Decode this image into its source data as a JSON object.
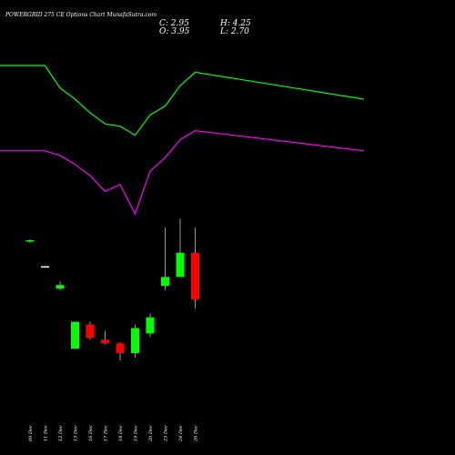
{
  "chart_data": {
    "type": "candlestick",
    "title": "POWERGRID 275 CE Options  Chart MunafaSutra.com",
    "ohlc_readout": {
      "c": "C: 2.95",
      "h": "H: 4.25",
      "o": "O: 3.95",
      "l": "L: 2.70"
    },
    "categories": [
      "09 Dec",
      "11 Dec",
      "12 Dec",
      "13 Dec",
      "16 Dec",
      "17 Dec",
      "18 Dec",
      "19 Dec",
      "20 Dec",
      "23 Dec",
      "24 Dec",
      "26 Dec"
    ],
    "candles": [
      {
        "open": 4.95,
        "high": 4.97,
        "low": 4.93,
        "close": 4.96,
        "color": "#00ff00"
      },
      {
        "open": 4.67,
        "high": 4.67,
        "low": 4.66,
        "close": 4.66,
        "color": "#ffffff"
      },
      {
        "open": 4.42,
        "high": 4.5,
        "low": 4.4,
        "close": 4.46,
        "color": "#00ff00"
      },
      {
        "open": 3.75,
        "high": 4.05,
        "low": 3.75,
        "close": 4.05,
        "color": "#00ff00"
      },
      {
        "open": 4.02,
        "high": 4.05,
        "low": 3.85,
        "close": 3.87,
        "color": "#ff0000"
      },
      {
        "open": 3.85,
        "high": 3.95,
        "low": 3.8,
        "close": 3.81,
        "color": "#ff0000"
      },
      {
        "open": 3.81,
        "high": 3.82,
        "low": 3.62,
        "close": 3.7,
        "color": "#ff0000"
      },
      {
        "open": 3.7,
        "high": 4.02,
        "low": 3.65,
        "close": 3.98,
        "color": "#00ff00"
      },
      {
        "open": 3.92,
        "high": 4.14,
        "low": 3.88,
        "close": 4.1,
        "color": "#00ff00"
      },
      {
        "open": 4.45,
        "high": 5.1,
        "low": 4.4,
        "close": 4.55,
        "color": "#00ff00"
      },
      {
        "open": 4.55,
        "high": 5.2,
        "low": 4.55,
        "close": 4.82,
        "color": "#00ff00"
      },
      {
        "open": 4.82,
        "high": 5.1,
        "low": 4.2,
        "close": 4.3,
        "color": "#ff0000"
      }
    ],
    "band_upper": {
      "color": "#00ff00",
      "values": [
        12.2,
        12.2,
        11.2,
        10.7,
        10.1,
        9.6,
        9.5,
        9.1,
        10.0,
        10.4,
        11.3,
        11.9
      ]
    },
    "band_lower": {
      "color": "#ff00ff",
      "values": [
        8.4,
        8.4,
        8.2,
        7.8,
        7.3,
        6.6,
        6.9,
        5.6,
        7.5,
        8.1,
        8.9,
        9.3
      ]
    },
    "band_tail": {
      "upper": 10.7,
      "lower": 8.4
    },
    "grid": false
  }
}
